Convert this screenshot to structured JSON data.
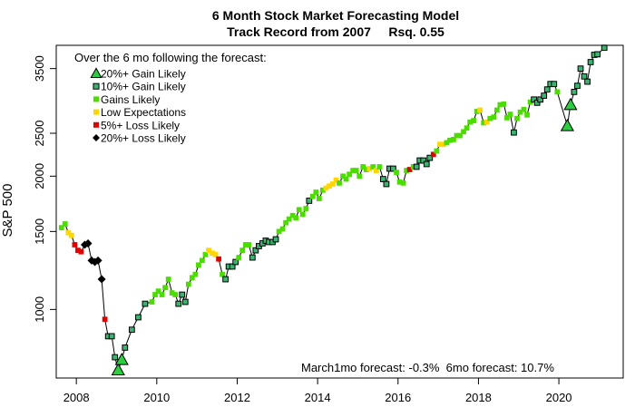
{
  "chart_data": {
    "type": "scatter",
    "title": "6 Month Stock Market Forecasting Model",
    "subtitle": "Track Record from 2007     Rsq. 0.55",
    "ylabel": "S&P 500",
    "xlabel": "",
    "y_scale": "log",
    "xlim": [
      2007.5,
      2021.6
    ],
    "ylim": [
      700,
      3950
    ],
    "x_ticks": [
      2008,
      2010,
      2012,
      2014,
      2016,
      2018,
      2020
    ],
    "y_ticks": [
      1000,
      1500,
      2000,
      2500,
      3500
    ],
    "legend_heading": "Over the 6 mo following the forecast:",
    "legend_position": "top-left",
    "annotation": "March1mo forecast: -0.3%  6mo forecast: 10.7%",
    "categories": [
      {
        "id": "gain20",
        "label": "20%+ Gain Likely",
        "marker": "triangle",
        "color": "#2ecc40"
      },
      {
        "id": "gain10",
        "label": "10%+ Gain Likely",
        "marker": "square",
        "color": "#3cb371"
      },
      {
        "id": "gains",
        "label": "Gains Likely",
        "marker": "square",
        "color": "#4cdd00"
      },
      {
        "id": "low",
        "label": "Low Expectations",
        "marker": "square",
        "color": "#ffd700"
      },
      {
        "id": "loss5",
        "label": "5%+  Loss Likely",
        "marker": "square",
        "color": "#e00000"
      },
      {
        "id": "loss20",
        "label": "20%+  Loss Likely",
        "marker": "diamond",
        "color": "#000000"
      }
    ],
    "points": [
      [
        2007.63,
        1530,
        "gains"
      ],
      [
        2007.72,
        1560,
        "gains"
      ],
      [
        2007.8,
        1490,
        "low"
      ],
      [
        2007.88,
        1470,
        "low"
      ],
      [
        2007.96,
        1400,
        "loss5"
      ],
      [
        2008.04,
        1360,
        "loss5"
      ],
      [
        2008.12,
        1350,
        "loss5"
      ],
      [
        2008.21,
        1400,
        "loss20"
      ],
      [
        2008.29,
        1410,
        "loss20"
      ],
      [
        2008.38,
        1290,
        "loss20"
      ],
      [
        2008.46,
        1280,
        "loss20"
      ],
      [
        2008.54,
        1290,
        "loss20"
      ],
      [
        2008.63,
        1170,
        "loss20"
      ],
      [
        2008.71,
        950,
        "loss5"
      ],
      [
        2008.79,
        870,
        "gain10"
      ],
      [
        2008.88,
        870,
        "gain10"
      ],
      [
        2008.96,
        780,
        "gain10"
      ],
      [
        2009.04,
        730,
        "gain20"
      ],
      [
        2009.13,
        770,
        "gain20"
      ],
      [
        2009.21,
        820,
        "gain10"
      ],
      [
        2009.38,
        900,
        "gain10"
      ],
      [
        2009.54,
        960,
        "gain10"
      ],
      [
        2009.71,
        1030,
        "gain10"
      ],
      [
        2009.88,
        1040,
        "gains"
      ],
      [
        2009.96,
        1080,
        "gains"
      ],
      [
        2010.04,
        1100,
        "gains"
      ],
      [
        2010.13,
        1080,
        "gains"
      ],
      [
        2010.21,
        1120,
        "gains"
      ],
      [
        2010.29,
        1170,
        "gains"
      ],
      [
        2010.38,
        1090,
        "gains"
      ],
      [
        2010.46,
        1080,
        "gains"
      ],
      [
        2010.54,
        1030,
        "gain10"
      ],
      [
        2010.63,
        1080,
        "gain10"
      ],
      [
        2010.71,
        1040,
        "gain10"
      ],
      [
        2010.79,
        1140,
        "gains"
      ],
      [
        2010.88,
        1180,
        "gains"
      ],
      [
        2010.96,
        1200,
        "gains"
      ],
      [
        2011.04,
        1260,
        "gains"
      ],
      [
        2011.13,
        1290,
        "gains"
      ],
      [
        2011.21,
        1330,
        "gains"
      ],
      [
        2011.29,
        1360,
        "low"
      ],
      [
        2011.38,
        1340,
        "low"
      ],
      [
        2011.46,
        1330,
        "low"
      ],
      [
        2011.54,
        1300,
        "loss5"
      ],
      [
        2011.63,
        1200,
        "gains"
      ],
      [
        2011.71,
        1170,
        "gain10"
      ],
      [
        2011.79,
        1250,
        "gain10"
      ],
      [
        2011.88,
        1250,
        "gain10"
      ],
      [
        2011.96,
        1280,
        "gain10"
      ],
      [
        2012.04,
        1310,
        "gains"
      ],
      [
        2012.13,
        1360,
        "gains"
      ],
      [
        2012.21,
        1400,
        "gains"
      ],
      [
        2012.29,
        1400,
        "gains"
      ],
      [
        2012.38,
        1310,
        "gain10"
      ],
      [
        2012.46,
        1360,
        "gain10"
      ],
      [
        2012.54,
        1390,
        "gain10"
      ],
      [
        2012.63,
        1410,
        "gain10"
      ],
      [
        2012.71,
        1430,
        "gain10"
      ],
      [
        2012.79,
        1420,
        "gain10"
      ],
      [
        2012.88,
        1420,
        "gain10"
      ],
      [
        2012.96,
        1440,
        "gain10"
      ],
      [
        2013.04,
        1500,
        "gains"
      ],
      [
        2013.13,
        1520,
        "gains"
      ],
      [
        2013.21,
        1570,
        "gains"
      ],
      [
        2013.29,
        1600,
        "gains"
      ],
      [
        2013.38,
        1630,
        "gains"
      ],
      [
        2013.46,
        1610,
        "gains"
      ],
      [
        2013.54,
        1680,
        "gains"
      ],
      [
        2013.63,
        1640,
        "gains"
      ],
      [
        2013.71,
        1690,
        "gains"
      ],
      [
        2013.79,
        1760,
        "gain10"
      ],
      [
        2013.88,
        1800,
        "gains"
      ],
      [
        2013.96,
        1840,
        "gains"
      ],
      [
        2014.04,
        1780,
        "gains"
      ],
      [
        2014.13,
        1860,
        "gains"
      ],
      [
        2014.21,
        1880,
        "low"
      ],
      [
        2014.29,
        1900,
        "low"
      ],
      [
        2014.38,
        1920,
        "low"
      ],
      [
        2014.46,
        1960,
        "low"
      ],
      [
        2014.54,
        1930,
        "gains"
      ],
      [
        2014.63,
        2000,
        "gains"
      ],
      [
        2014.71,
        1970,
        "gains"
      ],
      [
        2014.79,
        2020,
        "gains"
      ],
      [
        2014.88,
        2060,
        "gains"
      ],
      [
        2014.96,
        2060,
        "gains"
      ],
      [
        2015.04,
        2000,
        "gains"
      ],
      [
        2015.13,
        2100,
        "gains"
      ],
      [
        2015.21,
        2070,
        "gains"
      ],
      [
        2015.29,
        2080,
        "low"
      ],
      [
        2015.38,
        2100,
        "gains"
      ],
      [
        2015.46,
        2060,
        "low"
      ],
      [
        2015.54,
        2100,
        "gains"
      ],
      [
        2015.63,
        1970,
        "gain10"
      ],
      [
        2015.71,
        1920,
        "gain10"
      ],
      [
        2015.79,
        2080,
        "gain10"
      ],
      [
        2015.88,
        2080,
        "gain10"
      ],
      [
        2015.96,
        2040,
        "gains"
      ],
      [
        2016.04,
        1940,
        "gains"
      ],
      [
        2016.13,
        1930,
        "gains"
      ],
      [
        2016.21,
        2060,
        "gains"
      ],
      [
        2016.29,
        2070,
        "loss5"
      ],
      [
        2016.38,
        2100,
        "gains"
      ],
      [
        2016.46,
        2100,
        "gain10"
      ],
      [
        2016.54,
        2170,
        "gain10"
      ],
      [
        2016.63,
        2170,
        "gain10"
      ],
      [
        2016.71,
        2130,
        "gain10"
      ],
      [
        2016.79,
        2200,
        "gain10"
      ],
      [
        2016.88,
        2240,
        "loss5"
      ],
      [
        2016.96,
        2280,
        "gains"
      ],
      [
        2017.04,
        2360,
        "low"
      ],
      [
        2017.13,
        2360,
        "low"
      ],
      [
        2017.21,
        2380,
        "gains"
      ],
      [
        2017.29,
        2410,
        "gains"
      ],
      [
        2017.38,
        2420,
        "gains"
      ],
      [
        2017.46,
        2470,
        "gains"
      ],
      [
        2017.54,
        2470,
        "gains"
      ],
      [
        2017.63,
        2520,
        "gains"
      ],
      [
        2017.71,
        2570,
        "gains"
      ],
      [
        2017.79,
        2650,
        "gains"
      ],
      [
        2017.88,
        2670,
        "gains"
      ],
      [
        2017.96,
        2800,
        "gains"
      ],
      [
        2018.04,
        2820,
        "low"
      ],
      [
        2018.13,
        2640,
        "gains"
      ],
      [
        2018.21,
        2650,
        "low"
      ],
      [
        2018.29,
        2700,
        "gains"
      ],
      [
        2018.38,
        2720,
        "gains"
      ],
      [
        2018.46,
        2820,
        "gains"
      ],
      [
        2018.54,
        2900,
        "gains"
      ],
      [
        2018.63,
        2910,
        "gains"
      ],
      [
        2018.71,
        2710,
        "gains"
      ],
      [
        2018.79,
        2760,
        "gains"
      ],
      [
        2018.88,
        2510,
        "gain10"
      ],
      [
        2018.96,
        2700,
        "gains"
      ],
      [
        2019.04,
        2790,
        "gains"
      ],
      [
        2019.13,
        2830,
        "gains"
      ],
      [
        2019.21,
        2750,
        "gains"
      ],
      [
        2019.29,
        2940,
        "gains"
      ],
      [
        2019.38,
        2980,
        "gain10"
      ],
      [
        2019.46,
        2930,
        "gain10"
      ],
      [
        2019.54,
        2980,
        "gain10"
      ],
      [
        2019.63,
        3040,
        "gain10"
      ],
      [
        2019.71,
        3140,
        "gain10"
      ],
      [
        2019.79,
        3230,
        "gain10"
      ],
      [
        2019.88,
        3230,
        "gain10"
      ],
      [
        2019.96,
        3100,
        "gains"
      ],
      [
        2020.21,
        2600,
        "gain20"
      ],
      [
        2020.29,
        2900,
        "gain20"
      ],
      [
        2020.38,
        3100,
        "gain10"
      ],
      [
        2020.46,
        3200,
        "gain10"
      ],
      [
        2020.54,
        3500,
        "gain10"
      ],
      [
        2020.63,
        3360,
        "gain10"
      ],
      [
        2020.71,
        3270,
        "gain10"
      ],
      [
        2020.79,
        3620,
        "gain10"
      ],
      [
        2020.88,
        3760,
        "gain10"
      ],
      [
        2020.96,
        3770,
        "gain10"
      ],
      [
        2021.13,
        3900,
        "gain10"
      ]
    ]
  }
}
